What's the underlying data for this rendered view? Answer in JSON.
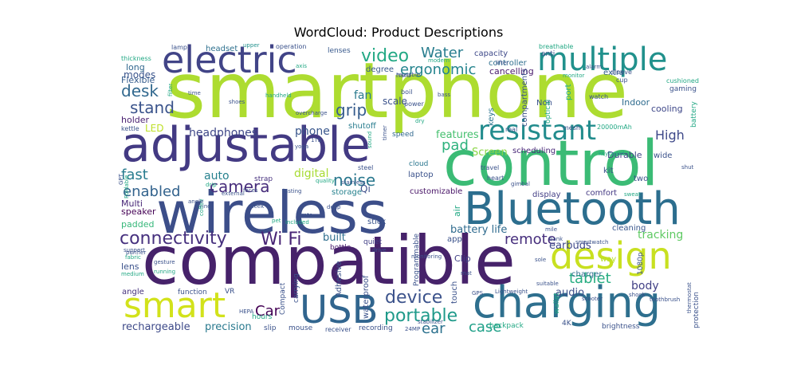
{
  "chart_data": {
    "type": "wordcloud",
    "title": "WordCloud: Product Descriptions",
    "background": "#ffffff",
    "colormap": "viridis",
    "words": [
      {
        "text": "smartphone",
        "size": 96,
        "color": "#addc30"
      },
      {
        "text": "compatible",
        "size": 84,
        "color": "#46226a"
      },
      {
        "text": "control",
        "size": 78,
        "color": "#3bbb75"
      },
      {
        "text": "wireless",
        "size": 72,
        "color": "#3c4e89"
      },
      {
        "text": "adjustable",
        "size": 60,
        "color": "#433a83"
      },
      {
        "text": "Bluetooth",
        "size": 56,
        "color": "#2c6e8e"
      },
      {
        "text": "charging",
        "size": 54,
        "color": "#2e6f8e"
      },
      {
        "text": "electric",
        "size": 46,
        "color": "#414487"
      },
      {
        "text": "design",
        "size": 46,
        "color": "#c8e020"
      },
      {
        "text": "USB",
        "size": 48,
        "color": "#31658e"
      },
      {
        "text": "smart",
        "size": 44,
        "color": "#d2e21b"
      },
      {
        "text": "multiple",
        "size": 40,
        "color": "#21918c"
      },
      {
        "text": "resistant",
        "size": 34,
        "color": "#228c8d"
      },
      {
        "text": "connectivity",
        "size": 22,
        "color": "#46307e"
      },
      {
        "text": "Wi Fi",
        "size": 22,
        "color": "#482475"
      },
      {
        "text": "device",
        "size": 22,
        "color": "#3b528b"
      },
      {
        "text": "portable",
        "size": 22,
        "color": "#1f9a8a"
      },
      {
        "text": "video",
        "size": 22,
        "color": "#22a884"
      },
      {
        "text": "ergonomic",
        "size": 18,
        "color": "#25848e"
      },
      {
        "text": "Water",
        "size": 18,
        "color": "#287d8e"
      },
      {
        "text": "desk",
        "size": 20,
        "color": "#31688e"
      },
      {
        "text": "stand",
        "size": 20,
        "color": "#3a538b"
      },
      {
        "text": "grip",
        "size": 20,
        "color": "#365d8d"
      },
      {
        "text": "camera",
        "size": 20,
        "color": "#472d7b"
      },
      {
        "text": "noise",
        "size": 20,
        "color": "#2a788e"
      },
      {
        "text": "enabled",
        "size": 18,
        "color": "#33638d"
      },
      {
        "text": "fast",
        "size": 18,
        "color": "#287c8e"
      },
      {
        "text": "remote",
        "size": 18,
        "color": "#472f7d"
      },
      {
        "text": "tablet",
        "size": 18,
        "color": "#27ad81"
      },
      {
        "text": "case",
        "size": 18,
        "color": "#1fa088"
      },
      {
        "text": "ear",
        "size": 18,
        "color": "#2c718e"
      },
      {
        "text": "Car",
        "size": 18,
        "color": "#440154"
      },
      {
        "text": "pad",
        "size": 18,
        "color": "#2db27d"
      },
      {
        "text": "High",
        "size": 16,
        "color": "#3e4989"
      },
      {
        "text": "tracking",
        "size": 14,
        "color": "#5ec962"
      },
      {
        "text": "body",
        "size": 14,
        "color": "#424186"
      },
      {
        "text": "headphones",
        "size": 14,
        "color": "#3f4788"
      },
      {
        "text": "phone",
        "size": 14,
        "color": "#39568c"
      },
      {
        "text": "fan",
        "size": 14,
        "color": "#297a8e"
      },
      {
        "text": "scale",
        "size": 12,
        "color": "#3b528b"
      },
      {
        "text": "features",
        "size": 13,
        "color": "#46c06f"
      },
      {
        "text": "Screen",
        "size": 13,
        "color": "#8bd646"
      },
      {
        "text": "auto",
        "size": 14,
        "color": "#26818e"
      },
      {
        "text": "digital",
        "size": 14,
        "color": "#a8db34"
      },
      {
        "text": "built",
        "size": 13,
        "color": "#2e6e8e"
      },
      {
        "text": "battery life",
        "size": 13,
        "color": "#2f6b8e"
      },
      {
        "text": "earbuds",
        "size": 13,
        "color": "#3f4889"
      },
      {
        "text": "audio",
        "size": 13,
        "color": "#3c4f8a"
      },
      {
        "text": "precision",
        "size": 13,
        "color": "#29798e"
      },
      {
        "text": "rechargeable",
        "size": 13,
        "color": "#3e4a89"
      },
      {
        "text": "modes",
        "size": 12,
        "color": "#3a548c"
      },
      {
        "text": "long",
        "size": 11,
        "color": "#31678e"
      },
      {
        "text": "Flexible",
        "size": 11,
        "color": "#365c8d"
      },
      {
        "text": "holder",
        "size": 11,
        "color": "#481f70"
      },
      {
        "text": "LED",
        "size": 12,
        "color": "#bddf26"
      },
      {
        "text": "Multi",
        "size": 11,
        "color": "#482777"
      },
      {
        "text": "speaker",
        "size": 11,
        "color": "#440154"
      },
      {
        "text": "padded",
        "size": 11,
        "color": "#35b779"
      },
      {
        "text": "lens",
        "size": 11,
        "color": "#3b528b"
      },
      {
        "text": "angle",
        "size": 10,
        "color": "#46327e"
      },
      {
        "text": "cooling",
        "size": 11,
        "color": "#3f4889"
      },
      {
        "text": "Indoor",
        "size": 11,
        "color": "#2f6c8e"
      },
      {
        "text": "Durable",
        "size": 11,
        "color": "#404588"
      },
      {
        "text": "cancelling",
        "size": 11,
        "color": "#481a6c"
      },
      {
        "text": "controller",
        "size": 10,
        "color": "#2e6f8e"
      },
      {
        "text": "capacity",
        "size": 10,
        "color": "#3e4989"
      },
      {
        "text": "extra",
        "size": 10,
        "color": "#34608d"
      },
      {
        "text": "degree",
        "size": 10,
        "color": "#38588c"
      },
      {
        "text": "Non",
        "size": 10,
        "color": "#3b528b"
      },
      {
        "text": "keys",
        "size": 10,
        "color": "#2b748e"
      },
      {
        "text": "scheduling",
        "size": 10,
        "color": "#482878"
      },
      {
        "text": "comfort",
        "size": 10,
        "color": "#443983"
      },
      {
        "text": "display",
        "size": 10,
        "color": "#433e85"
      },
      {
        "text": "customizable",
        "size": 10,
        "color": "#481467"
      },
      {
        "text": "laptop",
        "size": 10,
        "color": "#3b528b"
      },
      {
        "text": "storage",
        "size": 10,
        "color": "#26828e"
      },
      {
        "text": "Qi",
        "size": 12,
        "color": "#3d4e8a"
      },
      {
        "text": "strap",
        "size": 9,
        "color": "#46307e"
      },
      {
        "text": "speed",
        "size": 9,
        "color": "#31688e"
      },
      {
        "text": "shutoff",
        "size": 10,
        "color": "#287c8e"
      },
      {
        "text": "cloud",
        "size": 9,
        "color": "#2a768e"
      },
      {
        "text": "stick",
        "size": 10,
        "color": "#3a548c"
      },
      {
        "text": "quiet",
        "size": 9,
        "color": "#424086"
      },
      {
        "text": "bottle",
        "size": 9,
        "color": "#481b6d"
      },
      {
        "text": "app",
        "size": 10,
        "color": "#3b528b"
      },
      {
        "text": "Clip",
        "size": 11,
        "color": "#424186"
      },
      {
        "text": "cleaning",
        "size": 10,
        "color": "#39568c"
      },
      {
        "text": "way",
        "size": 10,
        "color": "#b5de2b"
      },
      {
        "text": "charger",
        "size": 10,
        "color": "#2e6e8e"
      },
      {
        "text": "wide",
        "size": 10,
        "color": "#3b528b"
      },
      {
        "text": "two",
        "size": 10,
        "color": "#3b528b"
      },
      {
        "text": "kit",
        "size": 10,
        "color": "#3b528b"
      },
      {
        "text": "headset",
        "size": 10,
        "color": "#2d708e"
      },
      {
        "text": "operation",
        "size": 8,
        "color": "#3b528b"
      },
      {
        "text": "lenses",
        "size": 9,
        "color": "#38598c"
      },
      {
        "text": "lamp",
        "size": 8,
        "color": "#3b528b"
      },
      {
        "text": "upper",
        "size": 7,
        "color": "#21918c"
      },
      {
        "text": "thickness",
        "size": 8,
        "color": "#22a884"
      },
      {
        "text": "anti",
        "size": 9,
        "color": "#3b528b"
      },
      {
        "text": "breathable",
        "size": 8,
        "color": "#22a884"
      },
      {
        "text": "gaming",
        "size": 9,
        "color": "#3b528b"
      },
      {
        "text": "cushioned",
        "size": 8,
        "color": "#22a884"
      },
      {
        "text": "sleeve",
        "size": 8,
        "color": "#3b528b"
      },
      {
        "text": "cup",
        "size": 8,
        "color": "#3b528b"
      },
      {
        "text": "monitor",
        "size": 7,
        "color": "#22a884"
      },
      {
        "text": "reusable",
        "size": 7,
        "color": "#3b528b"
      },
      {
        "text": "hard",
        "size": 8,
        "color": "#3b528b"
      },
      {
        "text": "power",
        "size": 8,
        "color": "#3b528b"
      },
      {
        "text": "boil",
        "size": 8,
        "color": "#3b528b"
      },
      {
        "text": "bass",
        "size": 7,
        "color": "#3b528b"
      },
      {
        "text": "watch",
        "size": 8,
        "color": "#3b528b"
      },
      {
        "text": "mesh",
        "size": 8,
        "color": "#3b528b"
      },
      {
        "text": "real",
        "size": 8,
        "color": "#3b528b"
      },
      {
        "text": "20000mAh",
        "size": 8,
        "color": "#22a884"
      },
      {
        "text": "keyboard",
        "size": 7,
        "color": "#22a884"
      },
      {
        "text": "shut",
        "size": 7,
        "color": "#3b528b"
      },
      {
        "text": "shoes",
        "size": 7,
        "color": "#3b528b"
      },
      {
        "text": "handheld",
        "size": 7,
        "color": "#22a884"
      },
      {
        "text": "overcharge",
        "size": 7,
        "color": "#3b528b"
      },
      {
        "text": "dry",
        "size": 7,
        "color": "#22a884"
      },
      {
        "text": "kettle",
        "size": 8,
        "color": "#3b528b"
      },
      {
        "text": "travel",
        "size": 8,
        "color": "#3b528b"
      },
      {
        "text": "heart",
        "size": 8,
        "color": "#3b528b"
      },
      {
        "text": "steel",
        "size": 8,
        "color": "#3b528b"
      },
      {
        "text": "stainless",
        "size": 7,
        "color": "#3b528b"
      },
      {
        "text": "quality",
        "size": 7,
        "color": "#22a884"
      },
      {
        "text": "lasting",
        "size": 7,
        "color": "#3b528b"
      },
      {
        "text": "external",
        "size": 7,
        "color": "#3b528b"
      },
      {
        "text": "drip",
        "size": 7,
        "color": "#22a884"
      },
      {
        "text": "gimbal",
        "size": 7,
        "color": "#3b528b"
      },
      {
        "text": "sweat",
        "size": 7,
        "color": "#22a884"
      },
      {
        "text": "deep",
        "size": 7,
        "color": "#3b528b"
      },
      {
        "text": "rate",
        "size": 7,
        "color": "#3b528b"
      },
      {
        "text": "included",
        "size": 7,
        "color": "#22a884"
      },
      {
        "text": "purifier",
        "size": 7,
        "color": "#3b528b"
      },
      {
        "text": "support",
        "size": 7,
        "color": "#3b528b"
      },
      {
        "text": "fabric",
        "size": 7,
        "color": "#22a884"
      },
      {
        "text": "gesture",
        "size": 7,
        "color": "#3b528b"
      },
      {
        "text": "running",
        "size": 7,
        "color": "#22a884"
      },
      {
        "text": "medium",
        "size": 7,
        "color": "#22a884"
      },
      {
        "text": "sleek",
        "size": 7,
        "color": "#3b528b"
      },
      {
        "text": "mile",
        "size": 7,
        "color": "#3b528b"
      },
      {
        "text": "bank",
        "size": 7,
        "color": "#3b528b"
      },
      {
        "text": "smartwatch",
        "size": 7,
        "color": "#3b528b"
      },
      {
        "text": "sole",
        "size": 7,
        "color": "#3b528b"
      },
      {
        "text": "suitable",
        "size": 7,
        "color": "#3b528b"
      },
      {
        "text": "shock",
        "size": 7,
        "color": "#3b528b"
      },
      {
        "text": "Lightweight",
        "size": 7,
        "color": "#3b528b"
      },
      {
        "text": "GPS",
        "size": 7,
        "color": "#3b528b"
      },
      {
        "text": "scooter",
        "size": 7,
        "color": "#3b528b"
      },
      {
        "text": "toothbrush",
        "size": 7,
        "color": "#3b528b"
      },
      {
        "text": "function",
        "size": 9,
        "color": "#3b528b"
      },
      {
        "text": "VR",
        "size": 9,
        "color": "#3b528b"
      },
      {
        "text": "HEPA",
        "size": 7,
        "color": "#3b528b"
      },
      {
        "text": "hours",
        "size": 9,
        "color": "#22a884"
      },
      {
        "text": "slip",
        "size": 9,
        "color": "#3b528b"
      },
      {
        "text": "mouse",
        "size": 9,
        "color": "#3b528b"
      },
      {
        "text": "receiver",
        "size": 8,
        "color": "#3b528b"
      },
      {
        "text": "recording",
        "size": 9,
        "color": "#3b528b"
      },
      {
        "text": "24MP",
        "size": 7,
        "color": "#3b528b"
      },
      {
        "text": "backpack",
        "size": 9,
        "color": "#22a884"
      },
      {
        "text": "4K",
        "size": 9,
        "color": "#3b528b"
      },
      {
        "text": "brightness",
        "size": 9,
        "color": "#3b528b"
      },
      {
        "text": "1080p",
        "size": 9,
        "color": "#3b528b"
      },
      {
        "text": "drive",
        "size": 7,
        "color": "#3b528b"
      },
      {
        "text": "monitoring",
        "size": 7,
        "color": "#3b528b"
      },
      {
        "text": "mat",
        "size": 7,
        "color": "#3b528b"
      },
      {
        "text": "stabilizer",
        "size": 7,
        "color": "#3b528b"
      },
      {
        "text": "sound",
        "size": 7,
        "color": "#22a884"
      },
      {
        "text": "timer",
        "size": 7,
        "color": "#3b528b"
      },
      {
        "text": "yoga",
        "size": 7,
        "color": "#3b528b"
      },
      {
        "text": "1TB",
        "size": 7,
        "color": "#3b528b"
      },
      {
        "text": "axis",
        "size": 7,
        "color": "#22a884"
      },
      {
        "text": "modern",
        "size": 7,
        "color": "#22a884"
      },
      {
        "text": "lifter",
        "size": 7,
        "color": "#3b528b"
      },
      {
        "text": "alarm",
        "size": 7,
        "color": "#3b528b"
      },
      {
        "text": "filter",
        "size": 7,
        "color": "#22a884"
      },
      {
        "text": "time",
        "size": 7,
        "color": "#3b528b"
      },
      {
        "text": "faces",
        "size": 7,
        "color": "#3b528b"
      },
      {
        "text": "ring",
        "size": 7,
        "color": "#3b528b"
      },
      {
        "text": "air",
        "size": 11,
        "color": "#22a884"
      },
      {
        "text": "compartments",
        "size": 10,
        "color": "#3b528b"
      },
      {
        "text": "optical",
        "size": 9,
        "color": "#22a884"
      },
      {
        "text": "port",
        "size": 10,
        "color": "#22a884"
      },
      {
        "text": "battery",
        "size": 9,
        "color": "#22a884"
      },
      {
        "text": "Programmable",
        "size": 9,
        "color": "#3b528b"
      },
      {
        "text": "waterproof",
        "size": 10,
        "color": "#3b528b"
      },
      {
        "text": "Adhesive",
        "size": 10,
        "color": "#3b528b"
      },
      {
        "text": "carrying",
        "size": 9,
        "color": "#3b528b"
      },
      {
        "text": "Compact",
        "size": 9,
        "color": "#3b528b"
      },
      {
        "text": "touch",
        "size": 10,
        "color": "#3b528b"
      },
      {
        "text": "wallet",
        "size": 9,
        "color": "#22a884"
      },
      {
        "text": "protection",
        "size": 9,
        "color": "#3b528b"
      },
      {
        "text": "thermostat",
        "size": 7,
        "color": "#3b528b"
      },
      {
        "text": "coffee",
        "size": 7,
        "color": "#22a884"
      },
      {
        "text": "Foldable",
        "size": 7,
        "color": "#22a884"
      },
      {
        "text": "GPT",
        "size": 7,
        "color": "#3b528b"
      },
      {
        "text": "pet",
        "size": 7,
        "color": "#22a884"
      },
      {
        "text": "angle",
        "size": 7,
        "color": "#3b528b"
      }
    ]
  }
}
